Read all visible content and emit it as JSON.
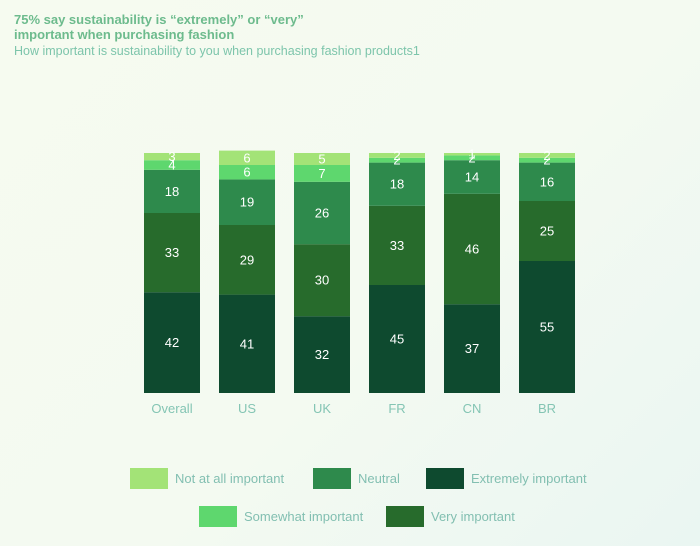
{
  "header": {
    "title": "75% say sustainability is “extremely” or “very” important when purchasing fashion",
    "subtitle": "How important is sustainability to you when purchasing fashion products1"
  },
  "colors": {
    "extremely": "#0e4a2f",
    "very": "#276b2c",
    "neutral": "#2e8a4c",
    "somewhat": "#5ed76e",
    "not_at_all": "#a3e377",
    "axis_text": "#84c5b4",
    "value_text": "#ffffff"
  },
  "chart_data": {
    "type": "bar",
    "stacked": true,
    "categories": [
      "Overall",
      "US",
      "UK",
      "FR",
      "CN",
      "BR"
    ],
    "series": [
      {
        "name": "Extremely important",
        "key": "extremely",
        "values": [
          42,
          41,
          32,
          45,
          37,
          55
        ]
      },
      {
        "name": "Very important",
        "key": "very",
        "values": [
          33,
          29,
          30,
          33,
          46,
          25
        ]
      },
      {
        "name": "Neutral",
        "key": "neutral",
        "values": [
          18,
          19,
          26,
          18,
          14,
          16
        ]
      },
      {
        "name": "Somewhat important",
        "key": "somewhat",
        "values": [
          4,
          6,
          7,
          2,
          2,
          2
        ]
      },
      {
        "name": "Not at all important",
        "key": "not_at_all",
        "values": [
          3,
          6,
          5,
          2,
          1,
          2
        ]
      }
    ],
    "ylim": [
      0,
      100
    ],
    "grid": false,
    "legend_position": "bottom"
  },
  "legend": {
    "items": [
      {
        "label": "Not at all important",
        "key": "not_at_all"
      },
      {
        "label": "Neutral",
        "key": "neutral"
      },
      {
        "label": "Extremely important",
        "key": "extremely"
      },
      {
        "label": "Somewhat important",
        "key": "somewhat"
      },
      {
        "label": "Very important",
        "key": "very"
      }
    ]
  }
}
